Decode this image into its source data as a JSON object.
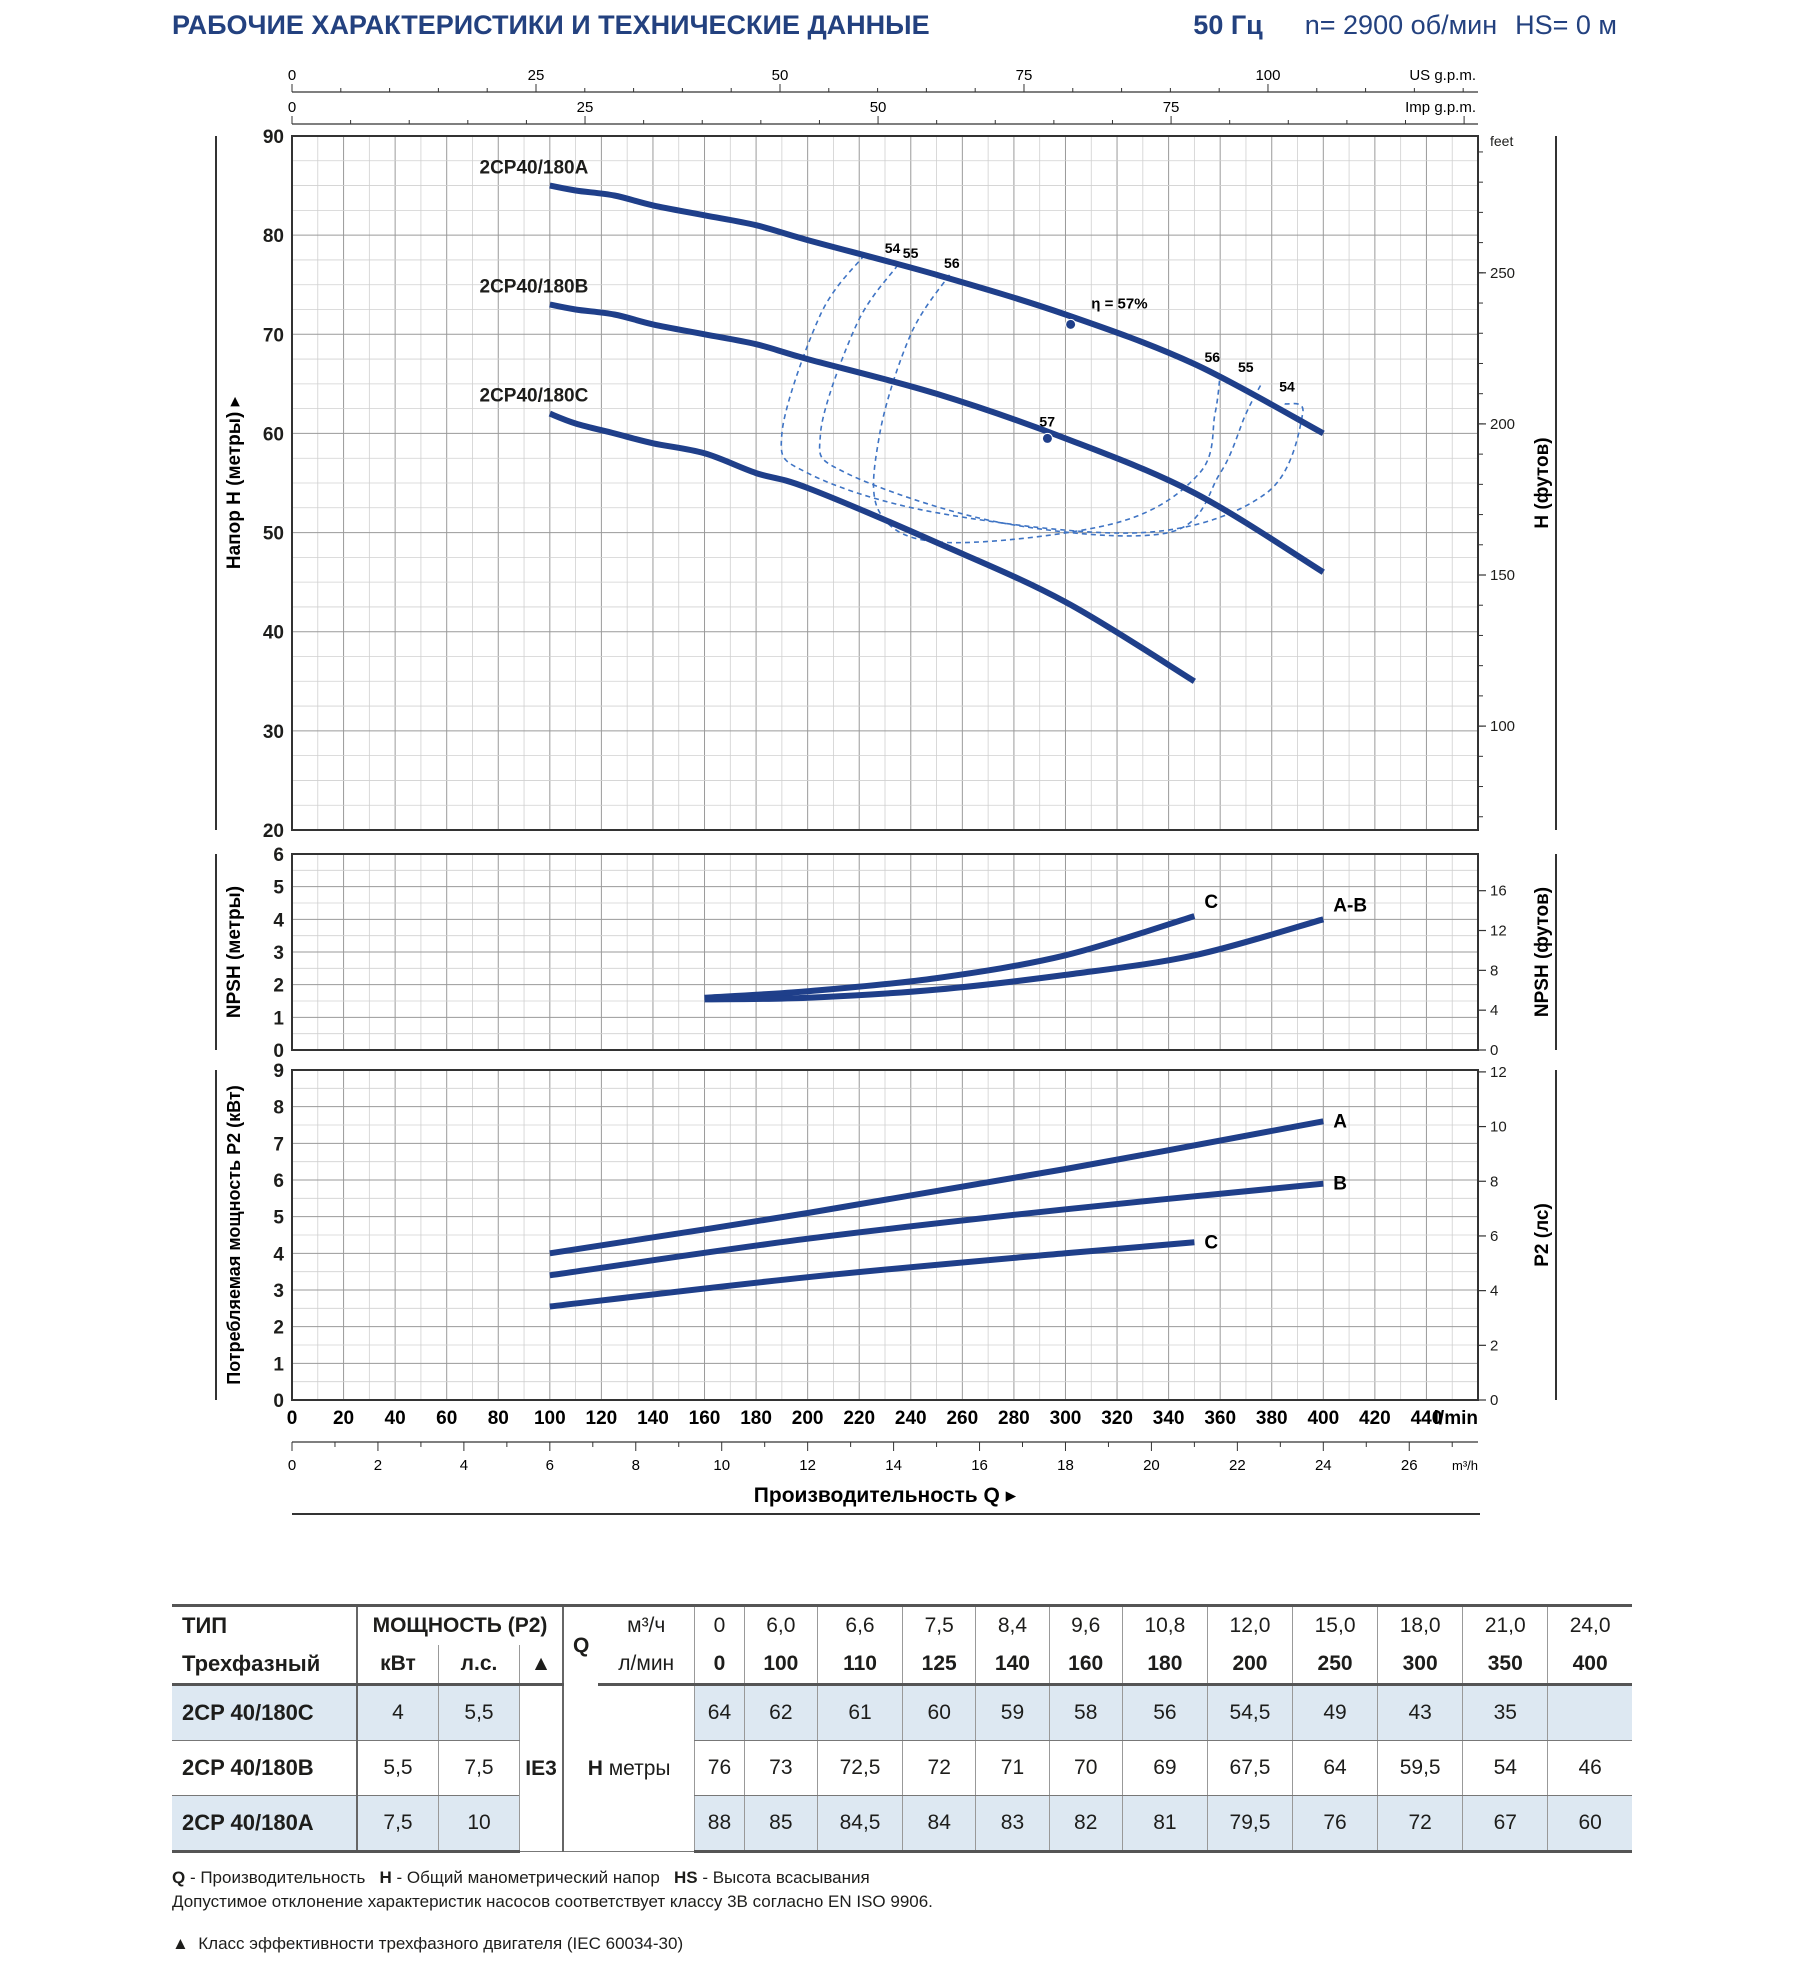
{
  "header": {
    "title": "РАБОЧИЕ ХАРАКТЕРИСТИКИ И ТЕХНИЧЕСКИЕ ДАННЫЕ",
    "freq": "50 Гц",
    "speed": "n= 2900 об/мин",
    "hs": "HS= 0 м"
  },
  "colors": {
    "curve": "#1f3f8a",
    "grid_major": "#9a9a9a",
    "grid_minor": "#d0d0d0",
    "title": "#23417f"
  },
  "chart_data": [
    {
      "type": "line",
      "panel": "head",
      "ylabel": "Напор H (метры)",
      "ylabel_right": "H (футов)",
      "ylim": [
        20,
        90
      ],
      "yticks": [
        "20",
        "30",
        "40",
        "50",
        "60",
        "70",
        "80",
        "90"
      ],
      "right_unit": "feet",
      "right_ticks": [
        "100",
        "150",
        "200",
        "250"
      ],
      "top_axis_us": {
        "unit": "US g.p.m.",
        "ticks": [
          "0",
          "25",
          "50",
          "75",
          "100"
        ]
      },
      "top_axis_imp": {
        "unit": "Imp g.p.m.",
        "ticks": [
          "0",
          "25",
          "50",
          "75"
        ]
      },
      "x_unit": "l/min",
      "xlim": [
        0,
        460
      ],
      "series": [
        {
          "name": "2CP40/180A",
          "x": [
            100,
            110,
            125,
            140,
            160,
            180,
            200,
            250,
            300,
            350,
            400
          ],
          "y": [
            85,
            84.5,
            84,
            83,
            82,
            81,
            79.5,
            76,
            72,
            67,
            60
          ]
        },
        {
          "name": "2CP40/180B",
          "x": [
            100,
            110,
            125,
            140,
            160,
            180,
            200,
            250,
            300,
            350,
            400
          ],
          "y": [
            73,
            72.5,
            72,
            71,
            70,
            69,
            67.5,
            64,
            59.5,
            54,
            46
          ]
        },
        {
          "name": "2CP40/180C",
          "x": [
            100,
            110,
            125,
            140,
            160,
            180,
            200,
            250,
            300,
            350
          ],
          "y": [
            62,
            61,
            60,
            59,
            58,
            56,
            54.5,
            49,
            43,
            35
          ]
        }
      ],
      "efficiency_label": "η = 57%",
      "efficiency_points": [
        {
          "label": "54",
          "x": 233,
          "y": 77
        },
        {
          "label": "55",
          "x": 240,
          "y": 76.5
        },
        {
          "label": "56",
          "x": 256,
          "y": 75.5
        },
        {
          "label": "57",
          "x": 302,
          "y": 71
        },
        {
          "label": "56",
          "x": 357,
          "y": 66
        },
        {
          "label": "55",
          "x": 370,
          "y": 65
        },
        {
          "label": "54",
          "x": 386,
          "y": 63
        },
        {
          "label": "57",
          "x": 293,
          "y": 59.5
        }
      ],
      "iso_efficiency_curves": [
        {
          "name": "54",
          "x": [
            222,
            205,
            190,
            200,
            250,
            330,
            378,
            392,
            385
          ],
          "y": [
            78,
            72,
            60,
            56,
            52,
            50,
            54,
            62,
            63
          ]
        },
        {
          "name": "55",
          "x": [
            235,
            219,
            205,
            215,
            275,
            340,
            360,
            370,
            376
          ],
          "y": [
            77,
            71,
            60,
            56,
            51,
            50,
            56,
            62,
            65
          ]
        },
        {
          "name": "56",
          "x": [
            255,
            240,
            228,
            228,
            254,
            320,
            352,
            358,
            360
          ],
          "y": [
            76,
            70,
            60,
            52,
            49,
            51,
            56,
            62,
            66
          ]
        }
      ]
    },
    {
      "type": "line",
      "panel": "npsh",
      "ylabel": "NPSH (метры)",
      "ylabel_right": "NPSH (футов)",
      "ylim": [
        0,
        6
      ],
      "yticks": [
        "0",
        "1",
        "2",
        "3",
        "4",
        "5",
        "6"
      ],
      "right_ticks": [
        "0",
        "4",
        "8",
        "12",
        "16"
      ],
      "series": [
        {
          "name": "C",
          "x": [
            160,
            200,
            250,
            300,
            350
          ],
          "y": [
            1.6,
            1.8,
            2.2,
            2.9,
            4.1
          ]
        },
        {
          "name": "A-B",
          "x": [
            160,
            200,
            250,
            300,
            350,
            400
          ],
          "y": [
            1.55,
            1.6,
            1.85,
            2.3,
            2.9,
            4.0
          ]
        }
      ]
    },
    {
      "type": "line",
      "panel": "power",
      "ylabel": "Потребляемая мощность P2 (кВт)",
      "ylabel_right": "P2 (лс)",
      "ylim": [
        0,
        9
      ],
      "yticks": [
        "0",
        "1",
        "2",
        "3",
        "4",
        "5",
        "6",
        "7",
        "8",
        "9"
      ],
      "right_ticks": [
        "0",
        "2",
        "4",
        "6",
        "8",
        "10",
        "12"
      ],
      "series": [
        {
          "name": "A",
          "x": [
            100,
            200,
            300,
            400
          ],
          "y": [
            4.0,
            5.1,
            6.3,
            7.6
          ]
        },
        {
          "name": "B",
          "x": [
            100,
            200,
            300,
            400
          ],
          "y": [
            3.4,
            4.4,
            5.2,
            5.9
          ]
        },
        {
          "name": "C",
          "x": [
            100,
            200,
            300,
            350
          ],
          "y": [
            2.55,
            3.35,
            4.0,
            4.3
          ]
        }
      ],
      "xticks_lmin": [
        "0",
        "20",
        "40",
        "60",
        "80",
        "100",
        "120",
        "140",
        "160",
        "180",
        "200",
        "220",
        "240",
        "260",
        "280",
        "300",
        "320",
        "340",
        "360",
        "380",
        "400",
        "420",
        "440"
      ],
      "x_unit_lmin": "l/min",
      "xticks_m3h": [
        "0",
        "2",
        "4",
        "6",
        "8",
        "10",
        "12",
        "14",
        "16",
        "18",
        "20",
        "22",
        "24",
        "26"
      ],
      "x_unit_m3h": "m³/h",
      "xlabel": "Производительность Q"
    }
  ],
  "table": {
    "h_type": "ТИП",
    "h_power": "МОЩНОСТЬ (P2)",
    "h_q": "Q",
    "h_unit_m3": "м³/ч",
    "h_unit_l": "л/мин",
    "h_phase": "Трехфазный",
    "h_kw": "кВт",
    "h_hp": "л.с.",
    "h_tri": "▲",
    "q_m3": [
      "0",
      "6,0",
      "6,6",
      "7,5",
      "8,4",
      "9,6",
      "10,8",
      "12,0",
      "15,0",
      "18,0",
      "21,0",
      "24,0"
    ],
    "q_l": [
      "0",
      "100",
      "110",
      "125",
      "140",
      "160",
      "180",
      "200",
      "250",
      "300",
      "350",
      "400"
    ],
    "ie": "IE3",
    "h_label": "H",
    "h_unit": "метры",
    "rows": [
      {
        "type": "2CP 40/180C",
        "kw": "4",
        "hp": "5,5",
        "h": [
          "64",
          "62",
          "61",
          "60",
          "59",
          "58",
          "56",
          "54,5",
          "49",
          "43",
          "35",
          ""
        ]
      },
      {
        "type": "2CP 40/180B",
        "kw": "5,5",
        "hp": "7,5",
        "h": [
          "76",
          "73",
          "72,5",
          "72",
          "71",
          "70",
          "69",
          "67,5",
          "64",
          "59,5",
          "54",
          "46"
        ]
      },
      {
        "type": "2CP 40/180A",
        "kw": "7,5",
        "hp": "10",
        "h": [
          "88",
          "85",
          "84,5",
          "84",
          "83",
          "82",
          "81",
          "79,5",
          "76",
          "72",
          "67",
          "60"
        ]
      }
    ]
  },
  "notes": {
    "q_key": "Q",
    "q_text": " - Производительность",
    "h_key": "H",
    "h_text": " - Общий манометрический напор",
    "hs_key": "HS",
    "hs_text": " - Высота всасывания",
    "line2": "Допустимое отклонение характеристик насосов соответствует классу 3B согласно EN ISO 9906.",
    "tri": "▲",
    "line3": "Класс эффективности трехфазного двигателя (IEC 60034-30)"
  }
}
